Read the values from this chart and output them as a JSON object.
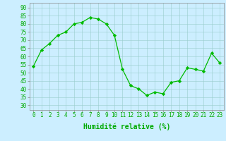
{
  "x": [
    0,
    1,
    2,
    3,
    4,
    5,
    6,
    7,
    8,
    9,
    10,
    11,
    12,
    13,
    14,
    15,
    16,
    17,
    18,
    19,
    20,
    21,
    22,
    23
  ],
  "y": [
    54,
    64,
    68,
    73,
    75,
    80,
    81,
    84,
    83,
    80,
    73,
    52,
    42,
    40,
    36,
    38,
    37,
    44,
    45,
    53,
    52,
    51,
    62,
    56
  ],
  "line_color": "#00bb00",
  "marker": "D",
  "marker_size": 2.2,
  "bg_color": "#cceeff",
  "grid_color": "#99cccc",
  "xlabel": "Humidité relative (%)",
  "xlabel_color": "#00aa00",
  "xlabel_fontsize": 7,
  "yticks": [
    30,
    35,
    40,
    45,
    50,
    55,
    60,
    65,
    70,
    75,
    80,
    85,
    90
  ],
  "ylim": [
    27,
    93
  ],
  "xlim": [
    -0.5,
    23.5
  ],
  "tick_fontsize": 5.5,
  "tick_color": "#00aa00"
}
